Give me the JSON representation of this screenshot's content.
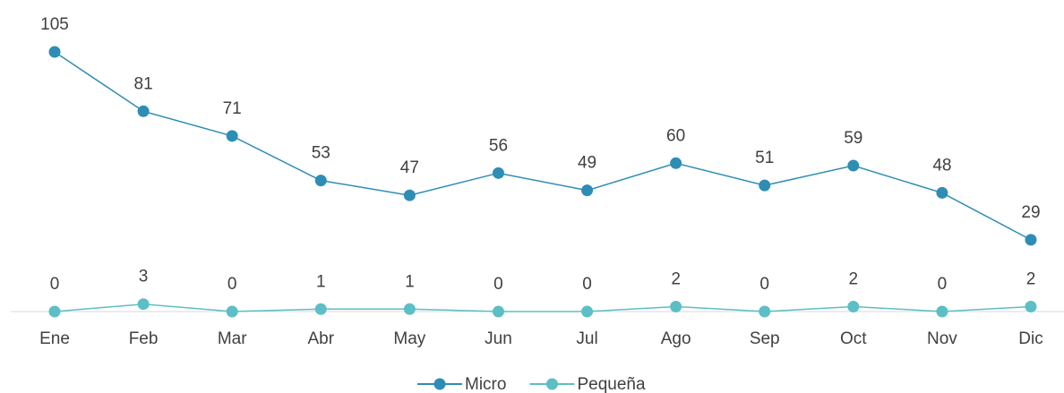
{
  "chart_data": {
    "type": "line",
    "categories": [
      "Ene",
      "Feb",
      "Mar",
      "Abr",
      "May",
      "Jun",
      "Jul",
      "Ago",
      "Sep",
      "Oct",
      "Nov",
      "Dic"
    ],
    "series": [
      {
        "name": "Micro",
        "color": "#2e8db5",
        "values": [
          105,
          81,
          71,
          53,
          47,
          56,
          49,
          60,
          51,
          59,
          48,
          29
        ]
      },
      {
        "name": "Pequeña",
        "color": "#5cbfc5",
        "values": [
          0,
          3,
          0,
          1,
          1,
          0,
          0,
          2,
          0,
          2,
          0,
          2
        ]
      }
    ],
    "ylim": [
      0,
      105
    ],
    "legend": "bottom",
    "data_labels": true
  }
}
